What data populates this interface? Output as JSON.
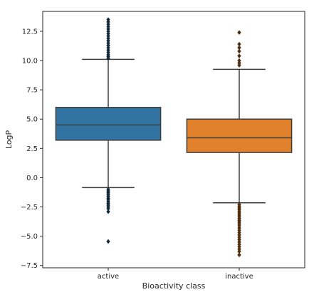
{
  "chart_data": {
    "type": "box",
    "xlabel": "Bioactivity class",
    "ylabel": "LogP",
    "categories": [
      "active",
      "inactive"
    ],
    "ylim": [
      -7.7,
      14.2
    ],
    "yticks": [
      -7.5,
      -5.0,
      -2.5,
      0.0,
      2.5,
      5.0,
      7.5,
      10.0,
      12.5
    ],
    "ytick_labels": [
      "−7.5",
      "−5.0",
      "−2.5",
      "0.0",
      "2.5",
      "5.0",
      "7.5",
      "10.0",
      "12.5"
    ],
    "grid": false,
    "boxes": [
      {
        "category": "active",
        "color": "#3274a1",
        "whisker_low": -0.85,
        "q1": 3.2,
        "median": 4.5,
        "q3": 6.0,
        "whisker_high": 10.1,
        "outliers": [
          -1.0,
          -1.15,
          -1.3,
          -1.45,
          -1.6,
          -1.75,
          -1.9,
          -2.05,
          -2.2,
          -2.35,
          -2.5,
          -2.65,
          -2.9,
          -5.45,
          10.2,
          10.35,
          10.5,
          10.7,
          10.9,
          11.1,
          11.3,
          11.5,
          11.7,
          11.9,
          12.1,
          12.3,
          12.5,
          12.7,
          12.9,
          13.1,
          13.3,
          13.5
        ]
      },
      {
        "category": "inactive",
        "color": "#e1812c",
        "whisker_low": -2.15,
        "q1": 2.15,
        "median": 3.4,
        "q3": 5.0,
        "whisker_high": 9.25,
        "outliers": [
          -2.3,
          -2.45,
          -2.6,
          -2.75,
          -2.9,
          -3.05,
          -3.2,
          -3.35,
          -3.5,
          -3.65,
          -3.8,
          -3.95,
          -4.1,
          -4.3,
          -4.5,
          -4.7,
          -4.9,
          -5.1,
          -5.3,
          -5.5,
          -5.7,
          -5.9,
          -6.1,
          -6.3,
          -6.6,
          9.6,
          9.8,
          10.0,
          10.4,
          10.8,
          11.1,
          11.4,
          12.4
        ]
      }
    ]
  }
}
